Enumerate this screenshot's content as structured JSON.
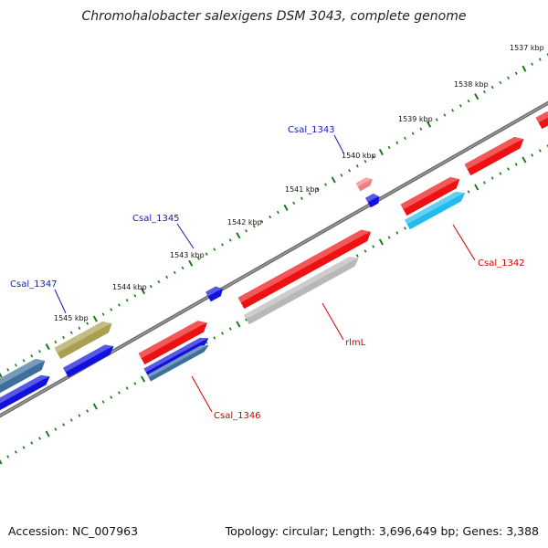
{
  "title": "Chromohalobacter salexigens DSM 3043, complete genome",
  "footer": {
    "accession": "Accession: NC_007963",
    "summary": "Topology: circular; Length: 3,696,649 bp; Genes: 3,388"
  },
  "scale": {
    "unit": "kbp",
    "ticks": [
      1537,
      1538,
      1539,
      1540,
      1541,
      1542,
      1543,
      1544,
      1545
    ]
  },
  "colors": {
    "backbone": "#6e6e6e",
    "tick": "#1a7a1a",
    "label_red": "#cc0000",
    "label_blue": "#1a1ab0",
    "cds_red": "#ee1111",
    "cds_pink": "#f08080",
    "cds_blue": "#1111dd",
    "cds_steel": "#3d6f9c",
    "cds_olive": "#a8a050",
    "cds_cyan": "#22bbee",
    "cds_gray": "#b8b8b8"
  },
  "genes": [
    {
      "name": "Csal_1342",
      "label": "Csal_1342",
      "color": "cds_cyan"
    },
    {
      "name": "rlmL",
      "label": "rlmL",
      "color": "cds_gray"
    },
    {
      "name": "Csal_1343",
      "label": "Csal_1343",
      "color": "cds_blue"
    },
    {
      "name": "Csal_1345",
      "label": "Csal_1345",
      "color": "cds_blue"
    },
    {
      "name": "Csal_1346",
      "label": "Csal_1346",
      "color": "cds_steel"
    },
    {
      "name": "Csal_1347",
      "label": "Csal_1347",
      "color": "cds_olive"
    }
  ]
}
